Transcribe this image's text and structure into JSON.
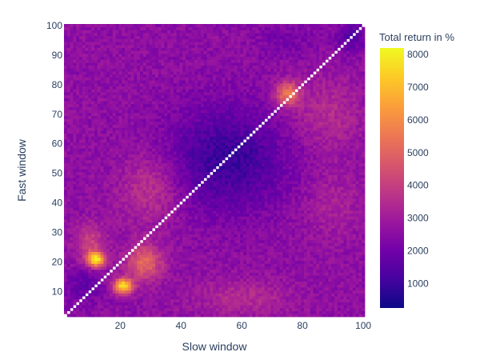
{
  "chart_data": {
    "type": "heatmap",
    "xlabel": "Slow window",
    "ylabel": "Fast window",
    "x_range": [
      2,
      100
    ],
    "y_range": [
      2,
      100
    ],
    "x_ticks": [
      20,
      40,
      60,
      80,
      100
    ],
    "y_ticks": [
      10,
      20,
      30,
      40,
      50,
      60,
      70,
      80,
      90,
      100
    ],
    "diagonal_value": null,
    "colorbar": {
      "title": "Total return in %",
      "min": 250,
      "max": 8200,
      "ticks": [
        1000,
        2000,
        3000,
        4000,
        5000,
        6000,
        7000,
        8000
      ],
      "colorscale": [
        "#0d0887",
        "#46039f",
        "#7201a8",
        "#9c179e",
        "#bd3786",
        "#d8576b",
        "#ed7953",
        "#fb9f3a",
        "#fdca26",
        "#f0f921"
      ]
    },
    "approximate_regions": [
      {
        "description": "background level",
        "value": 2600
      },
      {
        "description": "low-return basin centered near slow 55, fast 55",
        "value": 900
      },
      {
        "description": "hot spot near slow 12, fast 21",
        "value": 8000
      },
      {
        "description": "hot spot near slow 22, fast 12",
        "value": 8000
      },
      {
        "description": "hot band near slow 75, fast 77",
        "value": 6000
      }
    ]
  }
}
